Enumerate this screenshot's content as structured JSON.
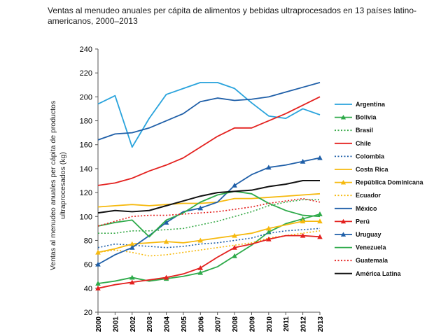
{
  "chart_data": {
    "type": "line",
    "title": "Ventas al menudeo anuales per cápita de alimentos y bebidas ultraprocesados en 13 países latino-americanos, 2000–2013",
    "ylabel_line1": "Ventas al menudeo anuales per cápita de productos",
    "ylabel_line2": "ultraprocesados (kg)",
    "xlabel": "",
    "ylim": [
      20,
      240
    ],
    "yticks": [
      20,
      40,
      60,
      80,
      100,
      120,
      140,
      160,
      180,
      200,
      220,
      240
    ],
    "x": [
      "2000",
      "2001",
      "2002",
      "2003",
      "2004",
      "2005",
      "2006",
      "2007",
      "2008",
      "2009",
      "2010",
      "2011",
      "2012",
      "2013"
    ],
    "grid": false,
    "legend_position": "right",
    "series": [
      {
        "name": "Argentina",
        "color": "#29a3dc",
        "dash": "solid",
        "marker": "none",
        "values": [
          194,
          201,
          158,
          182,
          202,
          207,
          212,
          212,
          207,
          195,
          184,
          182,
          190,
          185
        ]
      },
      {
        "name": "Bolivia",
        "color": "#2eaa4a",
        "dash": "solid",
        "marker": "triangle",
        "values": [
          44,
          46,
          49,
          46,
          48,
          50,
          53,
          58,
          67,
          76,
          87,
          94,
          98,
          102
        ]
      },
      {
        "name": "Brasil",
        "color": "#3aaa4a",
        "dash": "dotted",
        "marker": "none",
        "values": [
          86,
          86,
          88,
          88,
          89,
          90,
          93,
          96,
          100,
          104,
          109,
          112,
          114,
          114
        ]
      },
      {
        "name": "Chile",
        "color": "#e3201e",
        "dash": "solid",
        "marker": "none",
        "values": [
          126,
          128,
          132,
          138,
          143,
          149,
          158,
          167,
          174,
          174,
          180,
          186,
          193,
          200
        ]
      },
      {
        "name": "Colombia",
        "color": "#1f5fa8",
        "dash": "dotted",
        "marker": "none",
        "values": [
          74,
          77,
          76,
          75,
          74,
          75,
          77,
          78,
          80,
          82,
          86,
          88,
          89,
          90
        ]
      },
      {
        "name": "Costa Rica",
        "color": "#f6b90e",
        "dash": "solid",
        "marker": "none",
        "values": [
          108,
          109,
          110,
          109,
          110,
          111,
          111,
          112,
          115,
          115,
          116,
          117,
          118,
          119
        ]
      },
      {
        "name": "República Dominicana",
        "color": "#f6b90e",
        "dash": "solid",
        "marker": "triangle",
        "values": [
          70,
          73,
          77,
          78,
          79,
          78,
          80,
          82,
          84,
          86,
          90,
          93,
          96,
          96
        ]
      },
      {
        "name": "Ecuador",
        "color": "#f6b90e",
        "dash": "dotted",
        "marker": "none",
        "values": [
          70,
          72,
          70,
          67,
          68,
          70,
          72,
          74,
          76,
          78,
          82,
          84,
          86,
          88
        ]
      },
      {
        "name": "México",
        "color": "#1f5fa8",
        "dash": "solid",
        "marker": "none",
        "values": [
          164,
          169,
          170,
          174,
          180,
          186,
          196,
          199,
          197,
          198,
          200,
          204,
          208,
          212
        ]
      },
      {
        "name": "Perú",
        "color": "#e3201e",
        "dash": "solid",
        "marker": "triangle",
        "values": [
          40,
          43,
          45,
          47,
          49,
          52,
          57,
          66,
          74,
          77,
          81,
          84,
          84,
          83
        ]
      },
      {
        "name": "Uruguay",
        "color": "#1f5fa8",
        "dash": "solid",
        "marker": "triangle",
        "values": [
          60,
          68,
          74,
          84,
          95,
          104,
          107,
          112,
          126,
          135,
          141,
          143,
          146,
          149
        ]
      },
      {
        "name": "Venezuela",
        "color": "#2eaa4a",
        "dash": "solid",
        "marker": "none",
        "values": [
          92,
          95,
          97,
          83,
          97,
          103,
          112,
          118,
          121,
          119,
          111,
          105,
          101,
          100
        ]
      },
      {
        "name": "Guatemala",
        "color": "#e3201e",
        "dash": "dotted",
        "marker": "none",
        "values": [
          92,
          96,
          100,
          101,
          101,
          102,
          103,
          104,
          106,
          108,
          111,
          113,
          115,
          112
        ]
      },
      {
        "name": "América Latina",
        "color": "#111111",
        "dash": "solid",
        "marker": "none",
        "values": [
          103,
          105,
          104,
          105,
          109,
          113,
          117,
          120,
          121,
          122,
          125,
          127,
          130,
          130
        ]
      }
    ]
  }
}
